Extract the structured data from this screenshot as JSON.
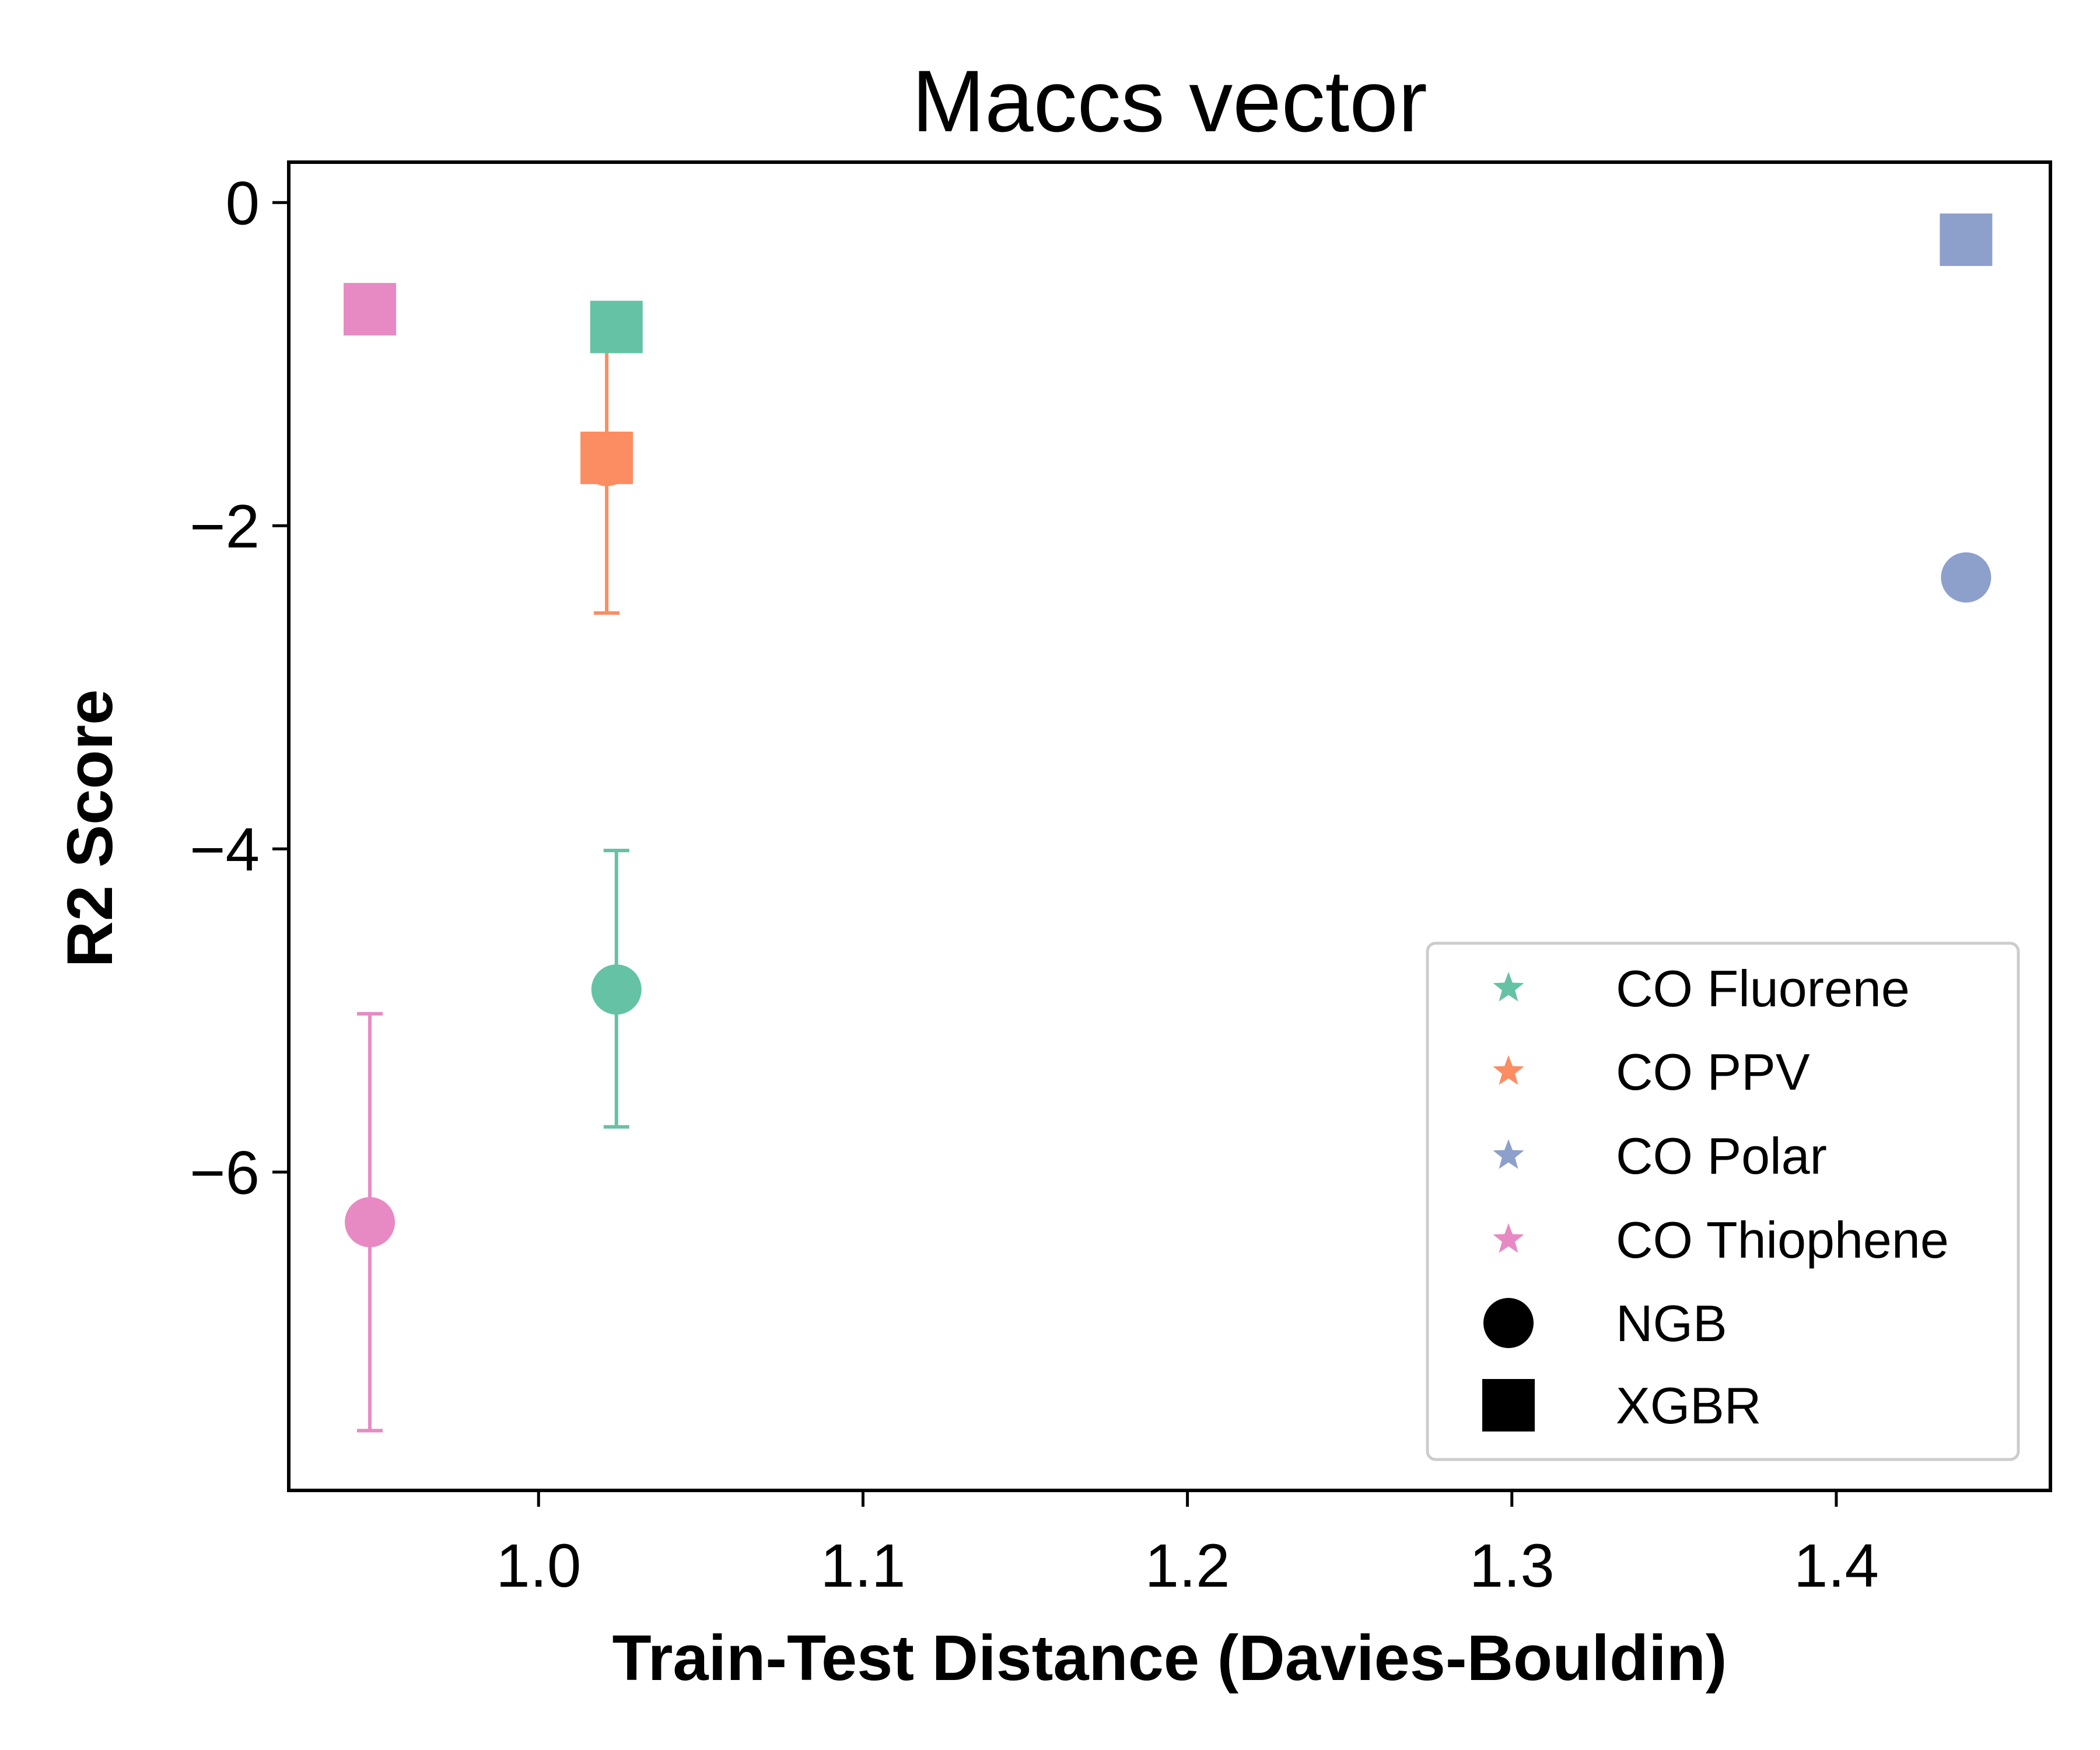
{
  "chart_data": {
    "type": "scatter",
    "title": "Maccs vector",
    "xlabel": "Train-Test Distance (Davies-Bouldin)",
    "ylabel": "R2 Score",
    "xlim": [
      0.923,
      1.466
    ],
    "ylim": [
      -7.97,
      0.25
    ],
    "xticks": [
      1.0,
      1.1,
      1.2,
      1.3,
      1.4
    ],
    "xtick_labels": [
      "1.0",
      "1.1",
      "1.2",
      "1.3",
      "1.4"
    ],
    "yticks": [
      0,
      -2,
      -4,
      -6
    ],
    "ytick_labels": [
      "0",
      "−2",
      "−4",
      "−6"
    ],
    "grid": false,
    "legend_position": "lower-right",
    "groups": [
      {
        "name": "CO Fluorene",
        "color": "#66c2a5"
      },
      {
        "name": "CO PPV",
        "color": "#fc8d62"
      },
      {
        "name": "CO Polar",
        "color": "#8da0cb"
      },
      {
        "name": "CO Thiophene",
        "color": "#e78ac3"
      }
    ],
    "models": [
      {
        "name": "NGB",
        "marker": "circle"
      },
      {
        "name": "XGBR",
        "marker": "square"
      }
    ],
    "points": [
      {
        "group": "CO Thiophene",
        "model": "NGB",
        "x": 0.948,
        "y": -6.31,
        "err_low": -7.6,
        "err_high": -5.02
      },
      {
        "group": "CO Fluorene",
        "model": "NGB",
        "x": 1.024,
        "y": -4.87,
        "err_low": -5.72,
        "err_high": -4.01
      },
      {
        "group": "CO PPV",
        "model": "NGB",
        "x": 1.021,
        "y": -1.6,
        "err_low": -2.54,
        "err_high": -0.68
      },
      {
        "group": "CO Polar",
        "model": "NGB",
        "x": 1.44,
        "y": -2.32
      },
      {
        "group": "CO Thiophene",
        "model": "XGBR",
        "x": 0.948,
        "y": -0.66
      },
      {
        "group": "CO Fluorene",
        "model": "XGBR",
        "x": 1.024,
        "y": -0.77
      },
      {
        "group": "CO PPV",
        "model": "XGBR",
        "x": 1.021,
        "y": -1.58
      },
      {
        "group": "CO Polar",
        "model": "XGBR",
        "x": 1.44,
        "y": -0.23
      }
    ]
  }
}
